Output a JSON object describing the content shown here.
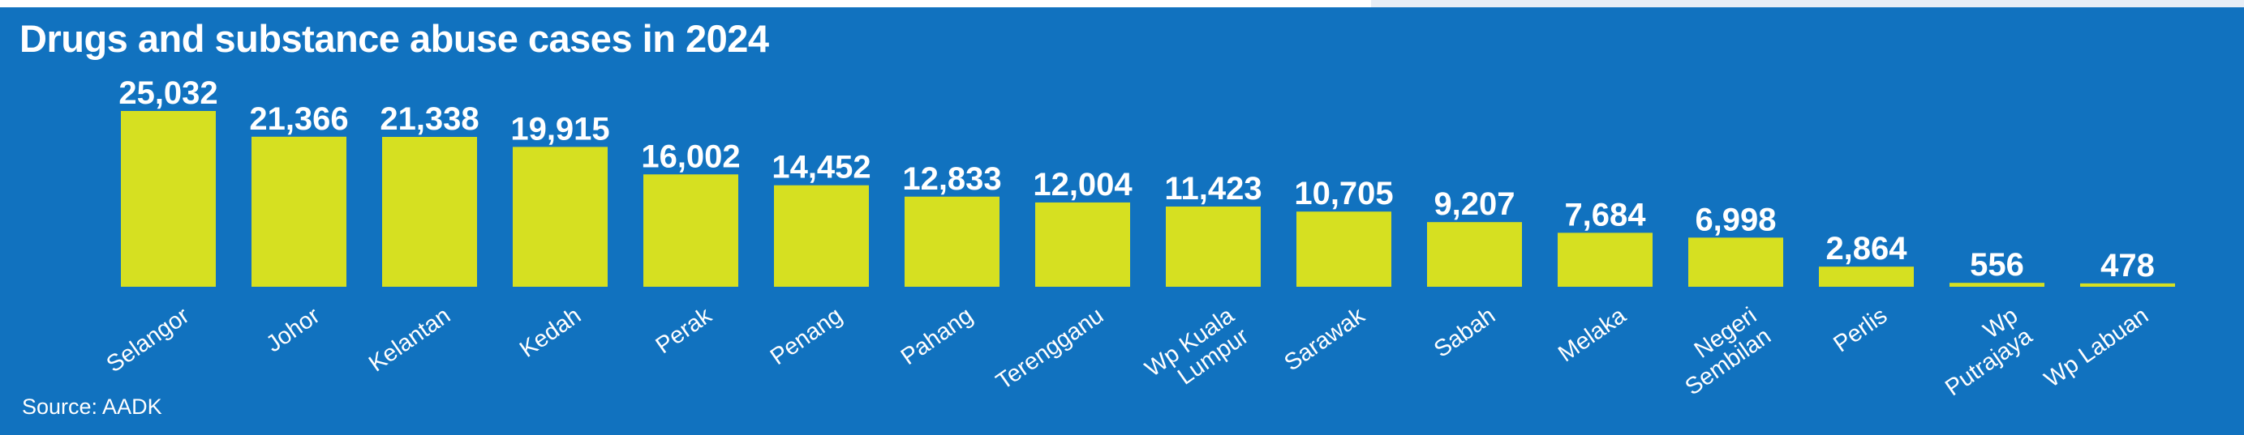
{
  "title": "Drugs and substance abuse cases in 2024",
  "source": "Source: AADK",
  "colors": {
    "background": "#1172bf",
    "bar": "#d6e021",
    "text": "#ffffff"
  },
  "chart_data": {
    "type": "bar",
    "title": "Drugs and substance abuse cases in 2024",
    "xlabel": "",
    "ylabel": "",
    "ylim": [
      0,
      25032
    ],
    "grid": false,
    "categories": [
      "Selangor",
      "Johor",
      "Kelantan",
      "Kedah",
      "Perak",
      "Penang",
      "Pahang",
      "Terengganu",
      "Wp Kuala Lumpur",
      "Sarawak",
      "Sabah",
      "Melaka",
      "Negeri Sembilan",
      "Perlis",
      "Wp Putrajaya",
      "Wp Labuan"
    ],
    "category_lines": [
      [
        "Selangor"
      ],
      [
        "Johor"
      ],
      [
        "Kelantan"
      ],
      [
        "Kedah"
      ],
      [
        "Perak"
      ],
      [
        "Penang"
      ],
      [
        "Pahang"
      ],
      [
        "Terengganu"
      ],
      [
        "Wp Kuala",
        "Lumpur"
      ],
      [
        "Sarawak"
      ],
      [
        "Sabah"
      ],
      [
        "Melaka"
      ],
      [
        "Negeri",
        "Sembilan"
      ],
      [
        "Perlis"
      ],
      [
        "Wp",
        "Putrajaya"
      ],
      [
        "Wp Labuan"
      ]
    ],
    "values": [
      25032,
      21366,
      21338,
      19915,
      16002,
      14452,
      12833,
      12004,
      11423,
      10705,
      9207,
      7684,
      6998,
      2864,
      556,
      478
    ],
    "value_labels": [
      "25,032",
      "21,366",
      "21,338",
      "19,915",
      "16,002",
      "14,452",
      "12,833",
      "12,004",
      "11,423",
      "10,705",
      "9,207",
      "7,684",
      "6,998",
      "2,864",
      "556",
      "478"
    ]
  }
}
